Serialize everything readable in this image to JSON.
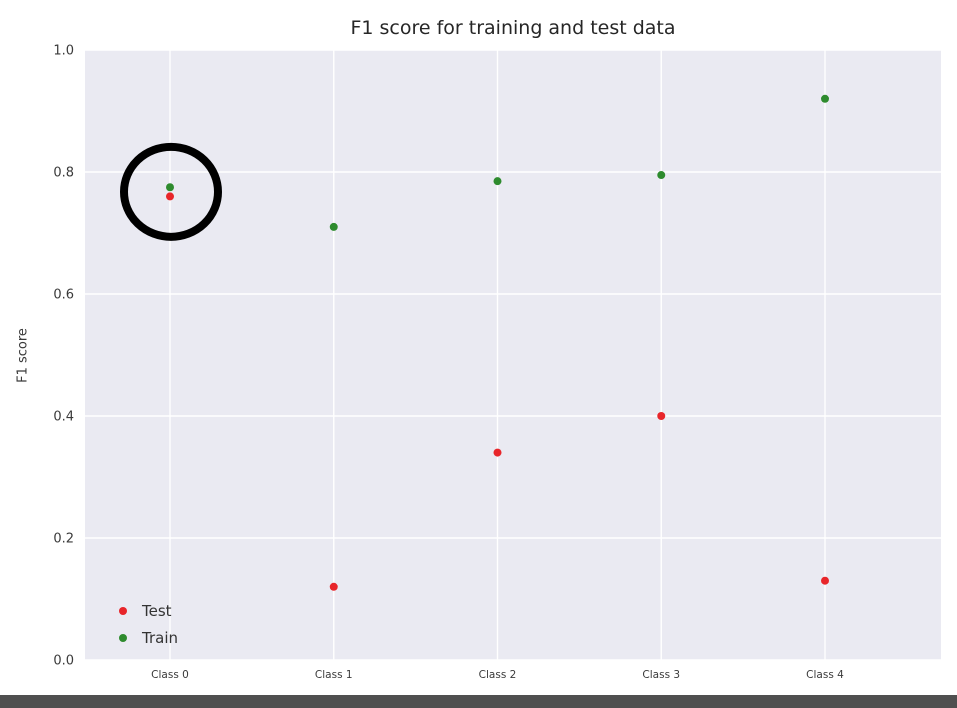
{
  "chart_data": {
    "type": "scatter",
    "title": "F1 score for training and test data",
    "xlabel": "",
    "ylabel": "F1 score",
    "categories": [
      "Class 0",
      "Class 1",
      "Class 2",
      "Class 3",
      "Class 4"
    ],
    "series": [
      {
        "name": "Test",
        "color": "#e8252a",
        "values": [
          0.76,
          0.12,
          0.34,
          0.4,
          0.13
        ]
      },
      {
        "name": "Train",
        "color": "#2e8b2e",
        "values": [
          0.775,
          0.71,
          0.785,
          0.795,
          0.92
        ]
      }
    ],
    "ylim": [
      0.0,
      1.0
    ],
    "yticks": [
      0.0,
      0.2,
      0.4,
      0.6,
      0.8,
      1.0
    ],
    "ytick_labels": [
      "0.0",
      "0.2",
      "0.4",
      "0.6",
      "0.8",
      "1.0"
    ],
    "grid": true,
    "grid_color": "#ffffff",
    "plot_background": "#eaeaf2",
    "legend_position": "lower-left",
    "annotation": {
      "type": "circle",
      "category": "Class 0",
      "color": "#000000",
      "description": "hand-drawn black circle highlighting the Class 0 train and test points"
    }
  },
  "page": {
    "bottom_strip_color": "#4f4f4f"
  }
}
